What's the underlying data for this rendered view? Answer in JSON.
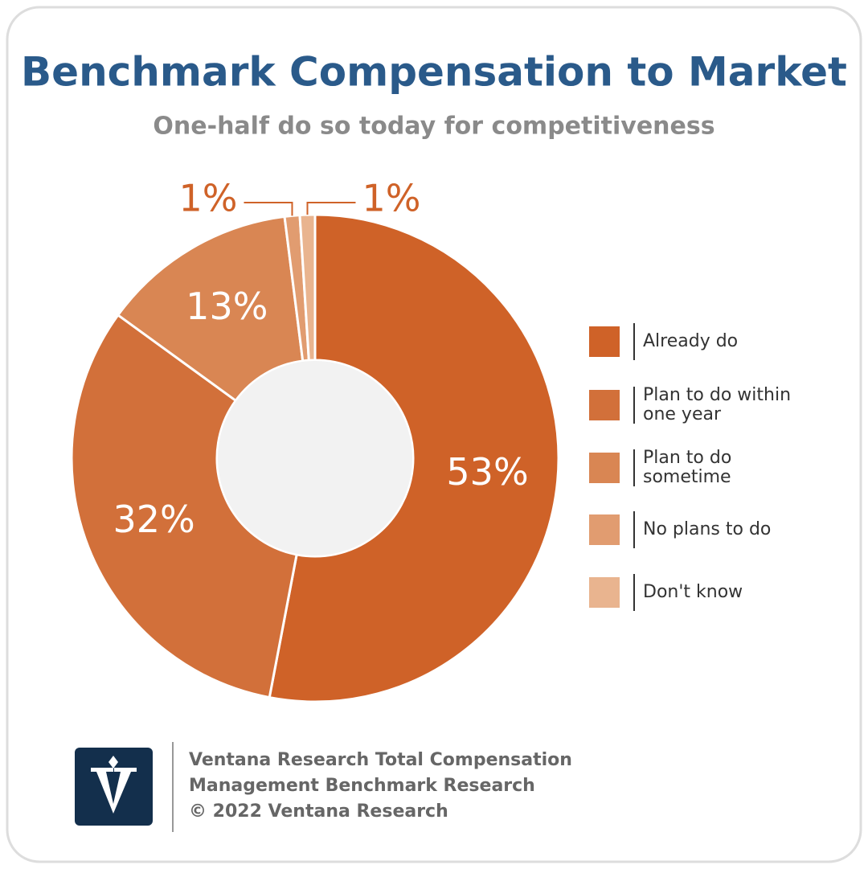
{
  "chart_data": {
    "type": "donut",
    "title": "Benchmark Compensation to Market",
    "subtitle": "One-half do so today for competitiveness",
    "categories": [
      "Already do",
      "Plan to do within one year",
      "Plan to do sometime",
      "No plans to do",
      "Don't know"
    ],
    "values": [
      53,
      32,
      13,
      1,
      1
    ],
    "value_labels": [
      "53%",
      "32%",
      "13%",
      "1%",
      "1%"
    ],
    "colors": [
      "#cf6228",
      "#d2703a",
      "#d98653",
      "#e19c70",
      "#e9b48f"
    ],
    "legend": "right"
  },
  "footer": {
    "lines": [
      "Ventana Research Total Compensation",
      "Management Benchmark Research",
      "© 2022 Ventana Research"
    ]
  }
}
